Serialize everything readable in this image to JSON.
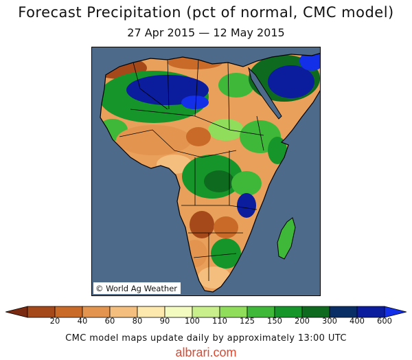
{
  "title": "Forecast Precipitation (pct of normal, CMC model)",
  "subtitle": "27 Apr 2015 — 12 May 2015",
  "map": {
    "region": "Africa",
    "credit": "© World Ag Weather",
    "ocean_color": "#4d6a8a",
    "background_land_color": "#e8a05a"
  },
  "legend": {
    "labels": [
      "20",
      "40",
      "60",
      "80",
      "90",
      "100",
      "110",
      "125",
      "150",
      "200",
      "300",
      "400",
      "600"
    ],
    "colors": [
      "#7a2a10",
      "#a5481a",
      "#c96a28",
      "#e39550",
      "#f4be7e",
      "#fde8ae",
      "#f4fbc0",
      "#c9ef8c",
      "#8fdd5a",
      "#3fb83a",
      "#15952a",
      "#0e6a1f",
      "#092e66",
      "#0b1c9c",
      "#1330e8"
    ]
  },
  "footer": "CMC model maps update daily by approximately 13:00 UTC",
  "watermark": "albrari.com"
}
